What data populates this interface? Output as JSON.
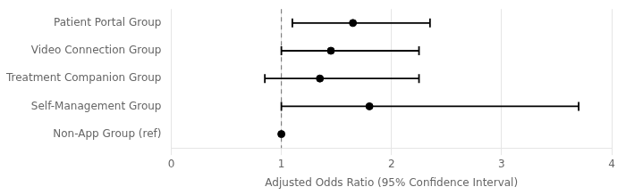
{
  "chart_data": {
    "type": "forest",
    "categories": [
      "Patient Portal Group",
      "Video Connection Group",
      "Treatment Companion Group",
      "Self-Management Group",
      "Non-App Group (ref)"
    ],
    "values": [
      1.65,
      1.45,
      1.35,
      1.8,
      1.0
    ],
    "ci_low": [
      1.1,
      1.0,
      0.85,
      1.0,
      null
    ],
    "ci_high": [
      2.35,
      2.25,
      2.25,
      3.7,
      null
    ],
    "ref_line": 1.0,
    "xlim": [
      0,
      4
    ],
    "xticks": [
      0,
      1,
      2,
      3,
      4
    ],
    "xlabel": "Adjusted Odds Ratio (95% Confidence Interval)",
    "color": "black",
    "grid": true
  }
}
